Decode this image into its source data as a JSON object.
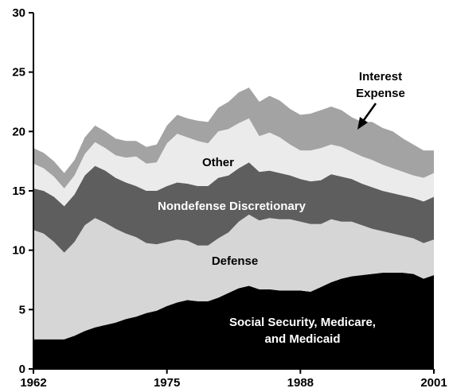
{
  "chart_data": {
    "type": "area",
    "stacked": true,
    "x": [
      1962,
      1963,
      1964,
      1965,
      1966,
      1967,
      1968,
      1969,
      1970,
      1971,
      1972,
      1973,
      1974,
      1975,
      1976,
      1977,
      1978,
      1979,
      1980,
      1981,
      1982,
      1983,
      1984,
      1985,
      1986,
      1987,
      1988,
      1989,
      1990,
      1991,
      1992,
      1993,
      1994,
      1995,
      1996,
      1997,
      1998,
      1999,
      2000,
      2001
    ],
    "series": [
      {
        "name": "Social Security, Medicare, and Medicaid",
        "color": "#000000",
        "values": [
          2.5,
          2.5,
          2.5,
          2.5,
          2.8,
          3.2,
          3.5,
          3.7,
          3.9,
          4.2,
          4.4,
          4.7,
          4.9,
          5.3,
          5.6,
          5.8,
          5.7,
          5.7,
          6.0,
          6.4,
          6.8,
          7.0,
          6.7,
          6.7,
          6.6,
          6.6,
          6.6,
          6.5,
          6.9,
          7.3,
          7.6,
          7.8,
          7.9,
          8.0,
          8.1,
          8.1,
          8.1,
          8.0,
          7.6,
          7.9
        ]
      },
      {
        "name": "Defense",
        "color": "#d6d6d6",
        "values": [
          9.2,
          8.9,
          8.2,
          7.3,
          7.9,
          8.9,
          9.2,
          8.6,
          7.9,
          7.2,
          6.7,
          5.9,
          5.6,
          5.4,
          5.3,
          5.0,
          4.7,
          4.7,
          5.0,
          5.1,
          5.6,
          6.0,
          5.8,
          6.0,
          6.0,
          6.0,
          5.8,
          5.7,
          5.3,
          5.3,
          4.8,
          4.6,
          4.2,
          3.8,
          3.5,
          3.3,
          3.1,
          3.0,
          3.0,
          3.0
        ]
      },
      {
        "name": "Nondefense Discretionary",
        "color": "#5e5e5e",
        "values": [
          3.5,
          3.6,
          3.8,
          3.9,
          4.0,
          4.2,
          4.4,
          4.4,
          4.3,
          4.3,
          4.3,
          4.4,
          4.5,
          4.7,
          4.8,
          4.8,
          5.0,
          5.0,
          5.1,
          4.8,
          4.5,
          4.4,
          4.1,
          4.0,
          3.9,
          3.7,
          3.6,
          3.6,
          3.7,
          3.8,
          3.8,
          3.6,
          3.5,
          3.5,
          3.4,
          3.4,
          3.4,
          3.4,
          3.5,
          3.6
        ]
      },
      {
        "name": "Other",
        "color": "#ebebeb",
        "values": [
          2.1,
          1.9,
          1.7,
          1.5,
          1.6,
          1.8,
          2.0,
          1.9,
          1.9,
          2.1,
          2.5,
          2.3,
          2.4,
          3.6,
          4.1,
          3.9,
          3.8,
          3.6,
          3.9,
          3.9,
          3.8,
          3.7,
          3.0,
          3.2,
          3.0,
          2.6,
          2.4,
          2.6,
          2.7,
          2.5,
          2.5,
          2.3,
          2.3,
          2.3,
          2.2,
          2.1,
          2.0,
          1.9,
          2.0,
          2.0
        ]
      },
      {
        "name": "Interest Expense",
        "color": "#a3a3a3",
        "values": [
          1.3,
          1.3,
          1.3,
          1.3,
          1.3,
          1.4,
          1.4,
          1.4,
          1.4,
          1.4,
          1.3,
          1.4,
          1.5,
          1.5,
          1.6,
          1.6,
          1.7,
          1.8,
          2.0,
          2.3,
          2.6,
          2.6,
          2.9,
          3.1,
          3.1,
          3.0,
          3.0,
          3.1,
          3.2,
          3.2,
          3.1,
          2.9,
          2.9,
          3.2,
          3.1,
          3.1,
          2.8,
          2.6,
          2.3,
          1.9
        ]
      }
    ],
    "title": "",
    "xlabel": "",
    "ylabel": "",
    "xlim": [
      1962,
      2001
    ],
    "ylim": [
      0,
      30
    ],
    "x_ticks": [
      "1962",
      "1975",
      "1988",
      "2001"
    ],
    "y_ticks": [
      "0",
      "5",
      "10",
      "15",
      "20",
      "25",
      "30"
    ],
    "grid": false,
    "legend": "none",
    "annotations": {
      "interest_line1": "Interest",
      "interest_line2": "Expense",
      "other": "Other",
      "nondefense": "Nondefense Discretionary",
      "defense": "Defense",
      "ssmm_line1": "Social Security, Medicare,",
      "ssmm_line2": "and Medicaid"
    }
  }
}
